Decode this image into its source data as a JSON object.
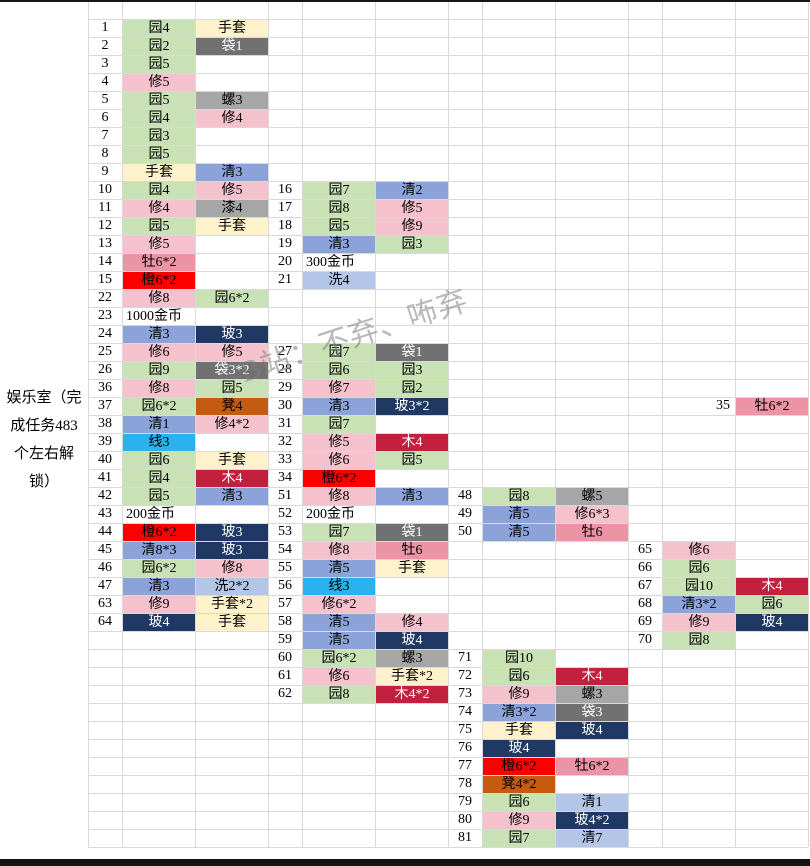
{
  "sheet": {
    "room_label": {
      "text": "娱乐室（完成任务483个左右解锁）",
      "lines": [
        "娱乐室（完",
        "成任务483",
        "个左右解",
        "锁）"
      ]
    },
    "watermark": {
      "text": "B站：不弃、咘弃"
    },
    "palette": {
      "green": {
        "bg": "#c8e2b6",
        "fg": "#000000"
      },
      "pink": {
        "bg": "#f5c1cc",
        "fg": "#000000"
      },
      "deeppink": {
        "bg": "#ec93a6",
        "fg": "#000000"
      },
      "red": {
        "bg": "#fc0000",
        "fg": "#000000"
      },
      "crimson": {
        "bg": "#c2203c",
        "fg": "#ffffff"
      },
      "navy": {
        "bg": "#1f3864",
        "fg": "#ffffff"
      },
      "gray": {
        "bg": "#a6a6a6",
        "fg": "#000000"
      },
      "darkgray": {
        "bg": "#717171",
        "fg": "#ffffff"
      },
      "blue": {
        "bg": "#8ca3d9",
        "fg": "#000000"
      },
      "lightblue": {
        "bg": "#b4c6e8",
        "fg": "#000000"
      },
      "cyan": {
        "bg": "#2bb2ee",
        "fg": "#000000"
      },
      "yellow": {
        "bg": "#fdf2cc",
        "fg": "#000000"
      },
      "orange": {
        "bg": "#c55a11",
        "fg": "#000000"
      },
      "none": {
        "bg": "transparent",
        "fg": "#000000"
      }
    },
    "entries": [
      {
        "g": 0,
        "r": 0,
        "n": "1",
        "c": [
          {
            "t": "园4",
            "k": "green"
          },
          {
            "t": "手套",
            "k": "yellow"
          }
        ]
      },
      {
        "g": 0,
        "r": 1,
        "n": "2",
        "c": [
          {
            "t": "园2",
            "k": "green"
          },
          {
            "t": "袋1",
            "k": "darkgray"
          }
        ]
      },
      {
        "g": 0,
        "r": 2,
        "n": "3",
        "c": [
          {
            "t": "园5",
            "k": "green"
          }
        ]
      },
      {
        "g": 0,
        "r": 3,
        "n": "4",
        "c": [
          {
            "t": "修5",
            "k": "pink"
          }
        ]
      },
      {
        "g": 0,
        "r": 4,
        "n": "5",
        "c": [
          {
            "t": "园5",
            "k": "green"
          },
          {
            "t": "螺3",
            "k": "gray"
          }
        ]
      },
      {
        "g": 0,
        "r": 5,
        "n": "6",
        "c": [
          {
            "t": "园4",
            "k": "green"
          },
          {
            "t": "修4",
            "k": "pink"
          }
        ]
      },
      {
        "g": 0,
        "r": 6,
        "n": "7",
        "c": [
          {
            "t": "园3",
            "k": "green"
          }
        ]
      },
      {
        "g": 0,
        "r": 7,
        "n": "8",
        "c": [
          {
            "t": "园5",
            "k": "green"
          }
        ]
      },
      {
        "g": 0,
        "r": 8,
        "n": "9",
        "c": [
          {
            "t": "手套",
            "k": "yellow"
          },
          {
            "t": "清3",
            "k": "blue"
          }
        ]
      },
      {
        "g": 0,
        "r": 9,
        "n": "10",
        "c": [
          {
            "t": "园4",
            "k": "green"
          },
          {
            "t": "修5",
            "k": "pink"
          }
        ]
      },
      {
        "g": 0,
        "r": 10,
        "n": "11",
        "c": [
          {
            "t": "修4",
            "k": "pink"
          },
          {
            "t": "漆4",
            "k": "gray"
          }
        ]
      },
      {
        "g": 0,
        "r": 11,
        "n": "12",
        "c": [
          {
            "t": "园5",
            "k": "green"
          },
          {
            "t": "手套",
            "k": "yellow"
          }
        ]
      },
      {
        "g": 0,
        "r": 12,
        "n": "13",
        "c": [
          {
            "t": "修5",
            "k": "pink"
          }
        ]
      },
      {
        "g": 0,
        "r": 13,
        "n": "14",
        "c": [
          {
            "t": "牡6*2",
            "k": "deeppink"
          }
        ]
      },
      {
        "g": 0,
        "r": 14,
        "n": "15",
        "c": [
          {
            "t": "橙6*2",
            "k": "red"
          }
        ]
      },
      {
        "g": 0,
        "r": 15,
        "n": "22",
        "c": [
          {
            "t": "修8",
            "k": "pink"
          },
          {
            "t": "园6*2",
            "k": "green"
          }
        ]
      },
      {
        "g": 0,
        "r": 16,
        "n": "23",
        "c": [
          {
            "t": "1000金币",
            "k": "none"
          }
        ]
      },
      {
        "g": 0,
        "r": 17,
        "n": "24",
        "c": [
          {
            "t": "清3",
            "k": "blue"
          },
          {
            "t": "玻3",
            "k": "navy"
          }
        ]
      },
      {
        "g": 0,
        "r": 18,
        "n": "25",
        "c": [
          {
            "t": "修6",
            "k": "pink"
          },
          {
            "t": "修5",
            "k": "pink"
          }
        ]
      },
      {
        "g": 0,
        "r": 19,
        "n": "26",
        "c": [
          {
            "t": "园9",
            "k": "green"
          },
          {
            "t": "袋3*2",
            "k": "darkgray"
          }
        ]
      },
      {
        "g": 0,
        "r": 20,
        "n": "36",
        "c": [
          {
            "t": "修8",
            "k": "pink"
          },
          {
            "t": "园5",
            "k": "green"
          }
        ]
      },
      {
        "g": 0,
        "r": 21,
        "n": "37",
        "c": [
          {
            "t": "园6*2",
            "k": "green"
          },
          {
            "t": "凳4",
            "k": "orange"
          }
        ]
      },
      {
        "g": 0,
        "r": 22,
        "n": "38",
        "c": [
          {
            "t": "清1",
            "k": "blue"
          },
          {
            "t": "修4*2",
            "k": "pink"
          }
        ]
      },
      {
        "g": 0,
        "r": 23,
        "n": "39",
        "c": [
          {
            "t": "线3",
            "k": "cyan"
          }
        ]
      },
      {
        "g": 0,
        "r": 24,
        "n": "40",
        "c": [
          {
            "t": "园6",
            "k": "green"
          },
          {
            "t": "手套",
            "k": "yellow"
          }
        ]
      },
      {
        "g": 0,
        "r": 25,
        "n": "41",
        "c": [
          {
            "t": "园4",
            "k": "green"
          },
          {
            "t": "木4",
            "k": "crimson"
          }
        ]
      },
      {
        "g": 0,
        "r": 26,
        "n": "42",
        "c": [
          {
            "t": "园5",
            "k": "green"
          },
          {
            "t": "清3",
            "k": "blue"
          }
        ]
      },
      {
        "g": 0,
        "r": 27,
        "n": "43",
        "c": [
          {
            "t": "200金币",
            "k": "none"
          }
        ]
      },
      {
        "g": 0,
        "r": 28,
        "n": "44",
        "c": [
          {
            "t": "橙6*2",
            "k": "red"
          },
          {
            "t": "玻3",
            "k": "navy"
          }
        ]
      },
      {
        "g": 0,
        "r": 29,
        "n": "45",
        "c": [
          {
            "t": "清8*3",
            "k": "blue"
          },
          {
            "t": "玻3",
            "k": "navy"
          }
        ]
      },
      {
        "g": 0,
        "r": 30,
        "n": "46",
        "c": [
          {
            "t": "园6*2",
            "k": "green"
          },
          {
            "t": "修8",
            "k": "pink"
          }
        ]
      },
      {
        "g": 0,
        "r": 31,
        "n": "47",
        "c": [
          {
            "t": "清3",
            "k": "blue"
          },
          {
            "t": "洗2*2",
            "k": "lightblue"
          }
        ]
      },
      {
        "g": 0,
        "r": 32,
        "n": "63",
        "c": [
          {
            "t": "修9",
            "k": "pink"
          },
          {
            "t": "手套*2",
            "k": "yellow"
          }
        ]
      },
      {
        "g": 0,
        "r": 33,
        "n": "64",
        "c": [
          {
            "t": "玻4",
            "k": "navy"
          },
          {
            "t": "手套",
            "k": "yellow"
          }
        ]
      },
      {
        "g": 1,
        "r": 9,
        "n": "16",
        "c": [
          {
            "t": "园7",
            "k": "green"
          },
          {
            "t": "清2",
            "k": "blue"
          }
        ]
      },
      {
        "g": 1,
        "r": 10,
        "n": "17",
        "c": [
          {
            "t": "园8",
            "k": "green"
          },
          {
            "t": "修5",
            "k": "pink"
          }
        ]
      },
      {
        "g": 1,
        "r": 11,
        "n": "18",
        "c": [
          {
            "t": "园5",
            "k": "green"
          },
          {
            "t": "修9",
            "k": "pink"
          }
        ]
      },
      {
        "g": 1,
        "r": 12,
        "n": "19",
        "c": [
          {
            "t": "清3",
            "k": "blue"
          },
          {
            "t": "园3",
            "k": "green"
          }
        ]
      },
      {
        "g": 1,
        "r": 13,
        "n": "20",
        "c": [
          {
            "t": "300金币",
            "k": "none"
          }
        ]
      },
      {
        "g": 1,
        "r": 14,
        "n": "21",
        "c": [
          {
            "t": "洗4",
            "k": "lightblue"
          }
        ]
      },
      {
        "g": 1,
        "r": 18,
        "n": "27",
        "c": [
          {
            "t": "园7",
            "k": "green"
          },
          {
            "t": "袋1",
            "k": "darkgray"
          }
        ]
      },
      {
        "g": 1,
        "r": 19,
        "n": "28",
        "c": [
          {
            "t": "园6",
            "k": "green"
          },
          {
            "t": "园3",
            "k": "green"
          }
        ]
      },
      {
        "g": 1,
        "r": 20,
        "n": "29",
        "c": [
          {
            "t": "修7",
            "k": "pink"
          },
          {
            "t": "园2",
            "k": "green"
          }
        ]
      },
      {
        "g": 1,
        "r": 21,
        "n": "30",
        "c": [
          {
            "t": "清3",
            "k": "blue"
          },
          {
            "t": "玻3*2",
            "k": "navy"
          }
        ]
      },
      {
        "g": 1,
        "r": 22,
        "n": "31",
        "c": [
          {
            "t": "园7",
            "k": "green"
          }
        ]
      },
      {
        "g": 1,
        "r": 23,
        "n": "32",
        "c": [
          {
            "t": "修5",
            "k": "pink"
          },
          {
            "t": "木4",
            "k": "crimson"
          }
        ]
      },
      {
        "g": 1,
        "r": 24,
        "n": "33",
        "c": [
          {
            "t": "修6",
            "k": "pink"
          },
          {
            "t": "园5",
            "k": "green"
          }
        ]
      },
      {
        "g": 1,
        "r": 25,
        "n": "34",
        "c": [
          {
            "t": "橙6*2",
            "k": "red"
          }
        ]
      },
      {
        "g": 1,
        "r": 26,
        "n": "51",
        "c": [
          {
            "t": "修8",
            "k": "pink"
          },
          {
            "t": "清3",
            "k": "blue"
          }
        ]
      },
      {
        "g": 1,
        "r": 27,
        "n": "52",
        "c": [
          {
            "t": "200金币",
            "k": "none"
          }
        ]
      },
      {
        "g": 1,
        "r": 28,
        "n": "53",
        "c": [
          {
            "t": "园7",
            "k": "green"
          },
          {
            "t": "袋1",
            "k": "darkgray"
          }
        ]
      },
      {
        "g": 1,
        "r": 29,
        "n": "54",
        "c": [
          {
            "t": "修8",
            "k": "pink"
          },
          {
            "t": "牡6",
            "k": "deeppink"
          }
        ]
      },
      {
        "g": 1,
        "r": 30,
        "n": "55",
        "c": [
          {
            "t": "清5",
            "k": "blue"
          },
          {
            "t": "手套",
            "k": "yellow"
          }
        ]
      },
      {
        "g": 1,
        "r": 31,
        "n": "56",
        "c": [
          {
            "t": "线3",
            "k": "cyan"
          }
        ]
      },
      {
        "g": 1,
        "r": 32,
        "n": "57",
        "c": [
          {
            "t": "修6*2",
            "k": "pink"
          }
        ]
      },
      {
        "g": 1,
        "r": 33,
        "n": "58",
        "c": [
          {
            "t": "清5",
            "k": "blue"
          },
          {
            "t": "修4",
            "k": "pink"
          }
        ]
      },
      {
        "g": 1,
        "r": 34,
        "n": "59",
        "c": [
          {
            "t": "清5",
            "k": "blue"
          },
          {
            "t": "玻4",
            "k": "navy"
          }
        ]
      },
      {
        "g": 1,
        "r": 35,
        "n": "60",
        "c": [
          {
            "t": "园6*2",
            "k": "green"
          },
          {
            "t": "螺3",
            "k": "gray"
          }
        ]
      },
      {
        "g": 1,
        "r": 36,
        "n": "61",
        "c": [
          {
            "t": "修6",
            "k": "pink"
          },
          {
            "t": "手套*2",
            "k": "yellow"
          }
        ]
      },
      {
        "g": 1,
        "r": 37,
        "n": "62",
        "c": [
          {
            "t": "园8",
            "k": "green"
          },
          {
            "t": "木4*2",
            "k": "crimson"
          }
        ]
      },
      {
        "g": 2,
        "r": 26,
        "n": "48",
        "c": [
          {
            "t": "园8",
            "k": "green"
          },
          {
            "t": "螺5",
            "k": "gray"
          }
        ]
      },
      {
        "g": 2,
        "r": 27,
        "n": "49",
        "c": [
          {
            "t": "清5",
            "k": "blue"
          },
          {
            "t": "修6*3",
            "k": "pink"
          }
        ]
      },
      {
        "g": 2,
        "r": 28,
        "n": "50",
        "c": [
          {
            "t": "清5",
            "k": "blue"
          },
          {
            "t": "牡6",
            "k": "deeppink"
          }
        ]
      },
      {
        "g": 2,
        "r": 35,
        "n": "71",
        "c": [
          {
            "t": "园10",
            "k": "green"
          }
        ]
      },
      {
        "g": 2,
        "r": 36,
        "n": "72",
        "c": [
          {
            "t": "园6",
            "k": "green"
          },
          {
            "t": "木4",
            "k": "crimson"
          }
        ]
      },
      {
        "g": 2,
        "r": 37,
        "n": "73",
        "c": [
          {
            "t": "修9",
            "k": "pink"
          },
          {
            "t": "螺3",
            "k": "gray"
          }
        ]
      },
      {
        "g": 2,
        "r": 38,
        "n": "74",
        "c": [
          {
            "t": "清3*2",
            "k": "blue"
          },
          {
            "t": "袋3",
            "k": "darkgray"
          }
        ]
      },
      {
        "g": 2,
        "r": 39,
        "n": "75",
        "c": [
          {
            "t": "手套",
            "k": "yellow"
          },
          {
            "t": "玻4",
            "k": "navy"
          }
        ]
      },
      {
        "g": 2,
        "r": 40,
        "n": "76",
        "c": [
          {
            "t": "玻4",
            "k": "navy"
          }
        ]
      },
      {
        "g": 2,
        "r": 41,
        "n": "77",
        "c": [
          {
            "t": "橙6*2",
            "k": "red"
          },
          {
            "t": "牡6*2",
            "k": "deeppink"
          }
        ]
      },
      {
        "g": 2,
        "r": 42,
        "n": "78",
        "c": [
          {
            "t": "凳4*2",
            "k": "orange"
          }
        ]
      },
      {
        "g": 2,
        "r": 43,
        "n": "79",
        "c": [
          {
            "t": "园6",
            "k": "green"
          },
          {
            "t": "清1",
            "k": "lightblue"
          }
        ]
      },
      {
        "g": 2,
        "r": 44,
        "n": "80",
        "c": [
          {
            "t": "修9",
            "k": "pink"
          },
          {
            "t": "玻4*2",
            "k": "navy"
          }
        ]
      },
      {
        "g": 2,
        "r": 45,
        "n": "81",
        "c": [
          {
            "t": "园7",
            "k": "green"
          },
          {
            "t": "清7",
            "k": "lightblue"
          }
        ]
      },
      {
        "g": 3,
        "r": 21,
        "n": "35",
        "numInItemCol": true,
        "c": [
          null,
          {
            "t": "牡6*2",
            "k": "deeppink"
          }
        ]
      },
      {
        "g": 3,
        "r": 29,
        "n": "65",
        "c": [
          {
            "t": "修6",
            "k": "pink"
          }
        ]
      },
      {
        "g": 3,
        "r": 30,
        "n": "66",
        "c": [
          {
            "t": "园6",
            "k": "green"
          }
        ]
      },
      {
        "g": 3,
        "r": 31,
        "n": "67",
        "c": [
          {
            "t": "园10",
            "k": "green"
          },
          {
            "t": "木4",
            "k": "crimson"
          }
        ]
      },
      {
        "g": 3,
        "r": 32,
        "n": "68",
        "c": [
          {
            "t": "清3*2",
            "k": "blue"
          },
          {
            "t": "园6",
            "k": "green"
          }
        ]
      },
      {
        "g": 3,
        "r": 33,
        "n": "69",
        "c": [
          {
            "t": "修9",
            "k": "pink"
          },
          {
            "t": "玻4",
            "k": "navy"
          }
        ]
      },
      {
        "g": 3,
        "r": 34,
        "n": "70",
        "c": [
          {
            "t": "园8",
            "k": "green"
          }
        ]
      }
    ]
  }
}
